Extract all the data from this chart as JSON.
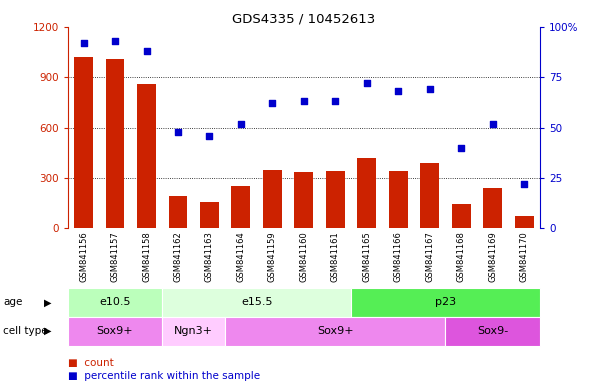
{
  "title": "GDS4335 / 10452613",
  "samples": [
    "GSM841156",
    "GSM841157",
    "GSM841158",
    "GSM841162",
    "GSM841163",
    "GSM841164",
    "GSM841159",
    "GSM841160",
    "GSM841161",
    "GSM841165",
    "GSM841166",
    "GSM841167",
    "GSM841168",
    "GSM841169",
    "GSM841170"
  ],
  "counts": [
    1020,
    1010,
    860,
    195,
    160,
    250,
    350,
    335,
    340,
    420,
    340,
    390,
    145,
    240,
    75
  ],
  "percentile": [
    92,
    93,
    88,
    48,
    46,
    52,
    62,
    63,
    63,
    72,
    68,
    69,
    40,
    52,
    22
  ],
  "age_groups": [
    {
      "label": "e10.5",
      "start": 0,
      "end": 3,
      "color": "#bbffbb"
    },
    {
      "label": "e15.5",
      "start": 3,
      "end": 9,
      "color": "#ddffdd"
    },
    {
      "label": "p23",
      "start": 9,
      "end": 15,
      "color": "#55ee55"
    }
  ],
  "cell_type_groups": [
    {
      "label": "Sox9+",
      "start": 0,
      "end": 3,
      "color": "#ee88ee"
    },
    {
      "label": "Ngn3+",
      "start": 3,
      "end": 5,
      "color": "#ffccff"
    },
    {
      "label": "Sox9+",
      "start": 5,
      "end": 12,
      "color": "#ee88ee"
    },
    {
      "label": "Sox9-",
      "start": 12,
      "end": 15,
      "color": "#dd55dd"
    }
  ],
  "bar_color": "#cc2200",
  "scatter_color": "#0000cc",
  "ylim_left": [
    0,
    1200
  ],
  "ylim_right": [
    0,
    100
  ],
  "yticks_left": [
    0,
    300,
    600,
    900,
    1200
  ],
  "yticks_right": [
    0,
    25,
    50,
    75,
    100
  ],
  "grid_lines": [
    300,
    600,
    900
  ],
  "tick_bg_color": "#cccccc",
  "label_age": "age",
  "label_cell": "cell type",
  "legend_count": "count",
  "legend_pct": "percentile rank within the sample"
}
